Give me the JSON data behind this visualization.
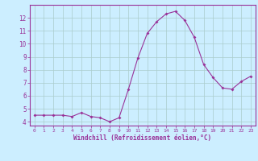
{
  "x": [
    0,
    1,
    2,
    3,
    4,
    5,
    6,
    7,
    8,
    9,
    10,
    11,
    12,
    13,
    14,
    15,
    16,
    17,
    18,
    19,
    20,
    21,
    22,
    23
  ],
  "y": [
    4.5,
    4.5,
    4.5,
    4.5,
    4.4,
    4.7,
    4.4,
    4.3,
    4.0,
    4.3,
    6.5,
    8.9,
    10.8,
    11.7,
    12.3,
    12.5,
    11.8,
    10.5,
    8.4,
    7.4,
    6.6,
    6.5,
    7.1,
    7.5
  ],
  "line_color": "#993399",
  "marker": "D",
  "marker_size": 2,
  "background_color": "#cceeff",
  "grid_color": "#aacccc",
  "xlabel": "Windchill (Refroidissement éolien,°C)",
  "xlabel_color": "#993399",
  "tick_color": "#993399",
  "spine_color": "#993399",
  "ylim": [
    3.7,
    13.0
  ],
  "xlim": [
    -0.5,
    23.5
  ],
  "yticks": [
    4,
    5,
    6,
    7,
    8,
    9,
    10,
    11,
    12
  ],
  "xticks": [
    0,
    1,
    2,
    3,
    4,
    5,
    6,
    7,
    8,
    9,
    10,
    11,
    12,
    13,
    14,
    15,
    16,
    17,
    18,
    19,
    20,
    21,
    22,
    23
  ]
}
